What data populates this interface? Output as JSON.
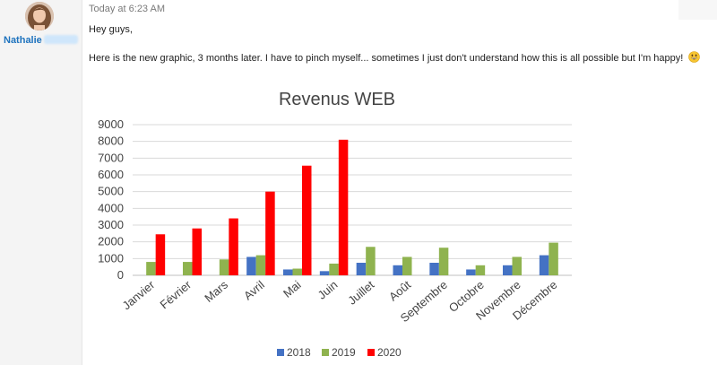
{
  "author": {
    "name": "Nathalie"
  },
  "message": {
    "timestamp": "Today at 6:23 AM",
    "greeting": "Hey guys,",
    "body": "Here is the new graphic, 3 months later. I have to pinch myself... sometimes I just don't understand how this is all possible but I'm happy!",
    "emoji": "grinning-face-icon"
  },
  "colors": {
    "s2018": "#4472c4",
    "s2019": "#8fb34f",
    "s2020": "#ff0000",
    "author": "#1e73be"
  },
  "chart_data": {
    "type": "bar",
    "title": "Revenus WEB",
    "xlabel": "",
    "ylabel": "",
    "ylim": [
      0,
      9000
    ],
    "yticks": [
      0,
      1000,
      2000,
      3000,
      4000,
      5000,
      6000,
      7000,
      8000,
      9000
    ],
    "grid": true,
    "legend": "bottom",
    "categories": [
      "Janvier",
      "Février",
      "Mars",
      "Avril",
      "Mai",
      "Juin",
      "Juillet",
      "Août",
      "Septembre",
      "Octobre",
      "Novembre",
      "Décembre"
    ],
    "series": [
      {
        "name": "2018",
        "values": [
          0,
          0,
          0,
          1100,
          350,
          250,
          750,
          600,
          750,
          350,
          600,
          1200
        ]
      },
      {
        "name": "2019",
        "values": [
          800,
          800,
          950,
          1200,
          400,
          700,
          1700,
          1100,
          1650,
          600,
          1100,
          1950
        ]
      },
      {
        "name": "2020",
        "values": [
          2450,
          2800,
          3400,
          5000,
          6550,
          8100,
          null,
          null,
          null,
          null,
          null,
          null
        ]
      }
    ]
  }
}
